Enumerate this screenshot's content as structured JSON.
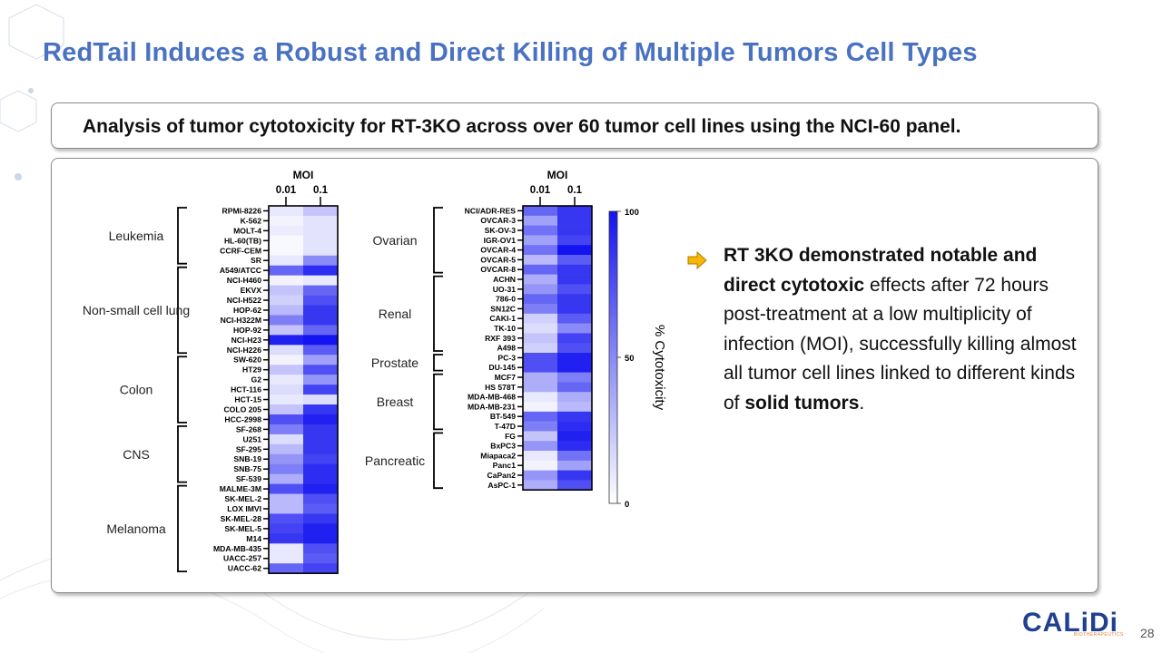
{
  "title": "RedTail Induces a Robust and Direct Killing of Multiple Tumors Cell Types",
  "subtitle": "Analysis of tumor cytotoxicity for RT-3KO across over 60 tumor cell lines using the NCI-60 panel.",
  "text": {
    "bold1": "RT 3KO demonstrated notable and direct cytotoxic",
    "normal1": " effects after 72 hours post-treatment at a low multiplicity of infection (MOI), successfully killing almost all tumor cell lines linked to different kinds of ",
    "bold2": "solid tumors",
    "normal2": "."
  },
  "logo": {
    "name": "CALiDi",
    "sub": "BIOTHERAPEUTICS"
  },
  "page_number": "28",
  "colors": {
    "title": "#4a72c2",
    "heat_max": "#1414f0",
    "heat_min": "#ffffff",
    "bullet": "#f5b800"
  },
  "chart_data": [
    {
      "type": "heatmap",
      "xlabel": "MOI",
      "x": [
        "0.01",
        "0.1"
      ],
      "groups": [
        {
          "name": "Leukemia",
          "rows": [
            "RPMI-8226",
            "K-562",
            "MOLT-4",
            "HL-60(TB)",
            "CCRF-CEM",
            "SR"
          ]
        },
        {
          "name": "Non-small cell lung",
          "rows": [
            "A549/ATCC",
            "NCI-H460",
            "EKVX",
            "NCI-H522",
            "HOP-62",
            "NCI-H322M",
            "HOP-92",
            "NCI-H23",
            "NCI-H226"
          ]
        },
        {
          "name": "Colon",
          "rows": [
            "SW-620",
            "HT29",
            "G2",
            "HCT-116",
            "HCT-15",
            "COLO 205",
            "HCC-2998"
          ]
        },
        {
          "name": "CNS",
          "rows": [
            "SF-268",
            "U251",
            "SF-295",
            "SNB-19",
            "SNB-75",
            "SF-539"
          ]
        },
        {
          "name": "Melanoma",
          "rows": [
            "MALME-3M",
            "SK-MEL-2",
            "LOX IMVI",
            "SK-MEL-28",
            "SK-MEL-5",
            "M14",
            "MDA-MB-435",
            "UACC-257",
            "UACC-62"
          ]
        }
      ],
      "values": [
        [
          10,
          25
        ],
        [
          5,
          12
        ],
        [
          8,
          12
        ],
        [
          3,
          12
        ],
        [
          3,
          12
        ],
        [
          10,
          50
        ],
        [
          65,
          90
        ],
        [
          5,
          10
        ],
        [
          25,
          65
        ],
        [
          20,
          75
        ],
        [
          30,
          85
        ],
        [
          55,
          85
        ],
        [
          25,
          65
        ],
        [
          95,
          100
        ],
        [
          15,
          70
        ],
        [
          5,
          40
        ],
        [
          25,
          75
        ],
        [
          10,
          45
        ],
        [
          15,
          80
        ],
        [
          10,
          15
        ],
        [
          25,
          85
        ],
        [
          75,
          95
        ],
        [
          55,
          85
        ],
        [
          15,
          85
        ],
        [
          30,
          85
        ],
        [
          45,
          80
        ],
        [
          55,
          90
        ],
        [
          35,
          90
        ],
        [
          75,
          95
        ],
        [
          30,
          75
        ],
        [
          30,
          70
        ],
        [
          75,
          85
        ],
        [
          80,
          95
        ],
        [
          85,
          95
        ],
        [
          10,
          75
        ],
        [
          10,
          70
        ],
        [
          65,
          80
        ]
      ]
    },
    {
      "type": "heatmap",
      "xlabel": "MOI",
      "x": [
        "0.01",
        "0.1"
      ],
      "groups": [
        {
          "name": "Ovarian",
          "rows": [
            "NCI/ADR-RES",
            "OVCAR-3",
            "SK-OV-3",
            "IGR-OV1",
            "OVCAR-4",
            "OVCAR-5",
            "OVCAR-8"
          ]
        },
        {
          "name": "Renal",
          "rows": [
            "ACHN",
            "UO-31",
            "786-0",
            "SN12C",
            "CAKI-1",
            "TK-10",
            "RXF 393",
            "A498"
          ]
        },
        {
          "name": "Prostate",
          "rows": [
            "PC-3",
            "DU-145"
          ]
        },
        {
          "name": "Breast",
          "rows": [
            "MCF7",
            "HS 578T",
            "MDA-MB-468",
            "MDA-MB-231",
            "BT-549",
            "T-47D"
          ]
        },
        {
          "name": "Pancreatic",
          "rows": [
            "FG",
            "BxPC3",
            "Miapaca2",
            "Panc1",
            "CaPan2",
            "AsPC-1"
          ]
        }
      ],
      "values": [
        [
          65,
          85
        ],
        [
          40,
          85
        ],
        [
          60,
          85
        ],
        [
          40,
          80
        ],
        [
          60,
          100
        ],
        [
          30,
          70
        ],
        [
          65,
          85
        ],
        [
          35,
          85
        ],
        [
          45,
          75
        ],
        [
          65,
          85
        ],
        [
          55,
          85
        ],
        [
          20,
          70
        ],
        [
          15,
          50
        ],
        [
          25,
          80
        ],
        [
          20,
          75
        ],
        [
          75,
          95
        ],
        [
          75,
          95
        ],
        [
          35,
          55
        ],
        [
          35,
          65
        ],
        [
          10,
          35
        ],
        [
          5,
          30
        ],
        [
          65,
          85
        ],
        [
          55,
          90
        ],
        [
          25,
          95
        ],
        [
          45,
          90
        ],
        [
          10,
          60
        ],
        [
          5,
          40
        ],
        [
          45,
          85
        ],
        [
          35,
          75
        ]
      ],
      "colorbar": {
        "label": "% Cytotoxicity",
        "ticks": [
          "100",
          "50",
          "0"
        ],
        "range": [
          0,
          100
        ]
      }
    }
  ]
}
